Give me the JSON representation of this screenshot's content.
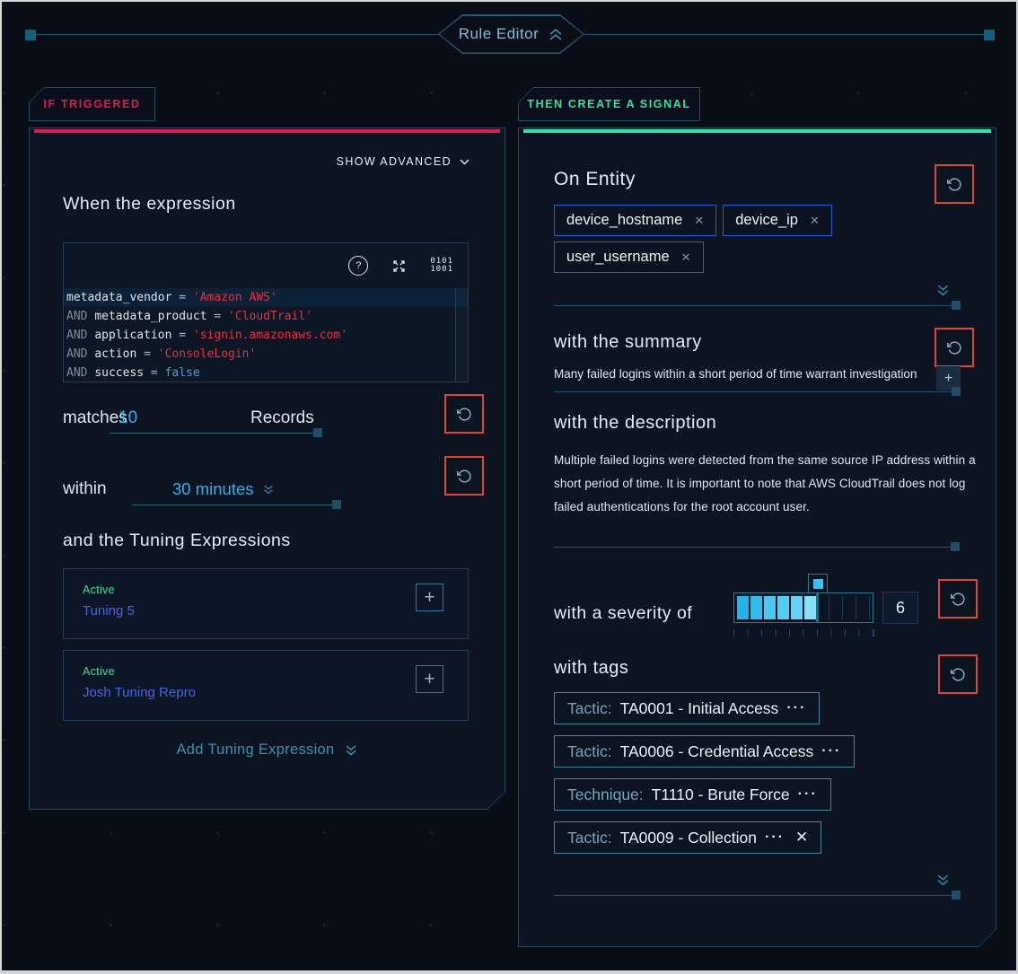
{
  "page": {
    "title": "Rule Editor"
  },
  "icons": {
    "help": "?",
    "plus": "+",
    "close": "✕",
    "more": "···",
    "binary_top": "0101",
    "binary_bottom": "1001"
  },
  "colors": {
    "accent_red": "#e3164e",
    "accent_green": "#2be3a2",
    "accent_cyan": "#27b4f0",
    "link_blue": "#4565e4",
    "entity_chip_blue": "#1d5fd6",
    "reset_border_red": "#e0452e",
    "panel_border_teal": "#1c4a5f",
    "code_string_red": "#e92e42",
    "severity_fill_cyan": "#3fc2ee"
  },
  "left_panel": {
    "tab": "IF TRIGGERED",
    "show_advanced": "SHOW ADVANCED",
    "heading": "When the expression",
    "editor": {
      "lines": [
        {
          "highlight": true,
          "tokens": [
            [
              "ident",
              "metadata_vendor"
            ],
            [
              "op",
              " = "
            ],
            [
              "str",
              "'Amazon AWS'"
            ]
          ]
        },
        {
          "highlight": false,
          "tokens": [
            [
              "kw",
              "AND "
            ],
            [
              "ident",
              "metadata_product"
            ],
            [
              "op",
              " = "
            ],
            [
              "str",
              "'CloudTrail'"
            ]
          ]
        },
        {
          "highlight": false,
          "tokens": [
            [
              "kw",
              "AND "
            ],
            [
              "ident",
              "application"
            ],
            [
              "op",
              " = "
            ],
            [
              "str",
              "'signin.amazonaws.com'"
            ]
          ]
        },
        {
          "highlight": false,
          "tokens": [
            [
              "kw",
              "AND "
            ],
            [
              "ident",
              "action"
            ],
            [
              "op",
              " = "
            ],
            [
              "str",
              "'ConsoleLogin'"
            ]
          ]
        },
        {
          "highlight": false,
          "tokens": [
            [
              "kw",
              "AND "
            ],
            [
              "ident",
              "success"
            ],
            [
              "op",
              " = "
            ],
            [
              "bool",
              "false"
            ]
          ]
        }
      ]
    },
    "matches": {
      "label": "matches",
      "value": "10",
      "suffix": "Records"
    },
    "within": {
      "label": "within",
      "value": "30 minutes"
    },
    "tuning_heading": "and the Tuning Expressions",
    "tuning_items": [
      {
        "status": "Active",
        "name": "Tuning 5"
      },
      {
        "status": "Active",
        "name": "Josh Tuning Repro"
      }
    ],
    "add_tuning": "Add Tuning Expression"
  },
  "right_panel": {
    "tab": "THEN CREATE A SIGNAL",
    "entity": {
      "heading": "On Entity",
      "chips": [
        "device_hostname",
        "device_ip",
        "user_username"
      ]
    },
    "summary": {
      "heading": "with the summary",
      "text": "Many failed logins within a short period of time warrant investigation"
    },
    "description": {
      "heading": "with the description",
      "text": "Multiple failed logins were detected from the same source IP address within a short period of time. It is important to note that AWS CloudTrail does not log failed authentications for the root account user."
    },
    "severity": {
      "heading": "with a severity of",
      "value": 6,
      "max": 10
    },
    "tags": {
      "heading": "with tags",
      "items": [
        {
          "type": "Tactic:",
          "label": "TA0001 - Initial Access",
          "closable": false
        },
        {
          "type": "Tactic:",
          "label": "TA0006 - Credential Access",
          "closable": false
        },
        {
          "type": "Technique:",
          "label": "T1110 - Brute Force",
          "closable": false
        },
        {
          "type": "Tactic:",
          "label": "TA0009 - Collection",
          "closable": true
        }
      ]
    }
  }
}
